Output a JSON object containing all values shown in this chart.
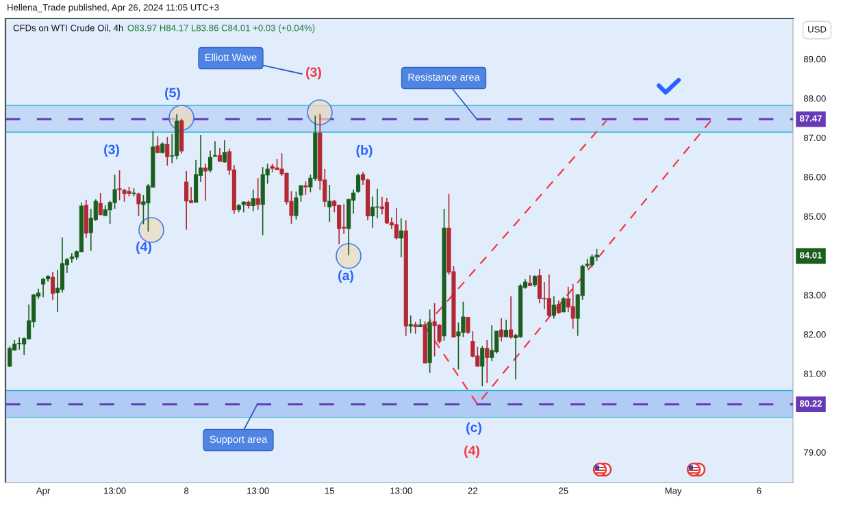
{
  "chart_data": {
    "type": "candlestick",
    "title": "CFDs on WTI Crude Oil, 4h",
    "subtitle": "O83.97 H84.17 L83.86 C84.01 +0.03 (+0.04%)",
    "ylabel": "USD",
    "categories": [
      null,
      null,
      null,
      null,
      null,
      null,
      null,
      "Apr",
      null,
      null,
      null,
      null,
      null,
      null,
      null,
      null,
      null,
      null,
      null,
      null,
      null,
      null,
      "13:00",
      null,
      null,
      null,
      null,
      null,
      null,
      null,
      null,
      null,
      null,
      null,
      null,
      null,
      null,
      "8",
      null,
      null,
      null,
      null,
      null,
      null,
      null,
      null,
      null,
      null,
      null,
      null,
      null,
      null,
      "13:00",
      null,
      null,
      null,
      null,
      null,
      null,
      null,
      null,
      null,
      null,
      null,
      null,
      null,
      null,
      "15",
      null,
      null,
      null,
      null,
      null,
      null,
      null,
      null,
      null,
      null,
      null,
      null,
      null,
      null,
      "13:00",
      null,
      null,
      null,
      null,
      null,
      null,
      null,
      null,
      null,
      null,
      null,
      null,
      null,
      null,
      "22",
      null,
      null,
      null,
      null,
      null,
      null,
      null,
      null,
      null,
      null,
      null,
      null,
      null,
      null,
      null,
      null,
      null,
      null,
      "25",
      null,
      null,
      null,
      null,
      null,
      null,
      null,
      null,
      null,
      null,
      null,
      null,
      null,
      null,
      null,
      null,
      null,
      null,
      null,
      null,
      null,
      null,
      "May",
      null,
      null,
      null,
      null,
      null,
      null,
      null,
      null,
      null,
      null,
      null,
      null,
      null,
      null,
      null,
      null,
      null,
      "6",
      null,
      null,
      null,
      null,
      null,
      null,
      null
    ],
    "ohlc": [
      [
        81.19,
        81.7,
        81.17,
        81.64
      ],
      [
        81.6,
        81.85,
        81.58,
        81.75
      ],
      [
        81.76,
        81.92,
        81.61,
        81.77
      ],
      [
        81.75,
        81.92,
        81.47,
        81.89
      ],
      [
        81.89,
        82.76,
        81.86,
        82.34
      ],
      [
        82.32,
        83.02,
        82.17,
        83.0
      ],
      [
        82.97,
        83.16,
        82.9,
        83.05
      ],
      [
        83.28,
        83.43,
        82.94,
        83.4
      ],
      [
        83.41,
        83.5,
        83.34,
        83.47
      ],
      [
        83.45,
        83.59,
        82.87,
        83.04
      ],
      [
        83.06,
        83.64,
        82.57,
        83.17
      ],
      [
        83.14,
        84.46,
        83.06,
        83.8
      ],
      [
        83.77,
        83.94,
        83.56,
        83.9
      ],
      [
        83.93,
        84.06,
        83.82,
        83.97
      ],
      [
        83.96,
        84.13,
        83.89,
        84.1
      ],
      [
        84.1,
        85.35,
        84.09,
        85.26
      ],
      [
        85.28,
        85.42,
        84.45,
        84.57
      ],
      [
        84.59,
        85.19,
        84.12,
        84.95
      ],
      [
        84.92,
        85.43,
        84.88,
        85.38
      ],
      [
        85.33,
        85.59,
        85.03,
        85.04
      ],
      [
        85.02,
        85.28,
        85.01,
        85.17
      ],
      [
        85.16,
        85.39,
        84.81,
        85.35
      ],
      [
        85.35,
        86.06,
        85.19,
        85.68
      ],
      [
        85.7,
        86.17,
        85.41,
        85.68
      ],
      [
        85.66,
        85.7,
        85.37,
        85.58
      ],
      [
        85.63,
        85.75,
        85.51,
        85.58
      ],
      [
        85.58,
        85.71,
        85.51,
        85.59
      ],
      [
        85.57,
        85.6,
        85.01,
        85.32
      ],
      [
        85.3,
        85.54,
        84.8,
        85.37
      ],
      [
        85.34,
        85.82,
        84.61,
        85.77
      ],
      [
        85.74,
        87.17,
        85.73,
        86.76
      ],
      [
        86.79,
        87.03,
        86.6,
        86.62
      ],
      [
        86.62,
        86.88,
        86.6,
        86.84
      ],
      [
        86.83,
        87.02,
        86.29,
        86.52
      ],
      [
        86.53,
        87.09,
        86.35,
        86.54
      ],
      [
        86.54,
        87.6,
        86.45,
        87.42
      ],
      [
        87.43,
        87.48,
        86.59,
        86.66
      ],
      [
        85.87,
        86.15,
        84.66,
        85.39
      ],
      [
        85.4,
        85.75,
        85.34,
        85.35
      ],
      [
        85.36,
        86.43,
        85.35,
        86.06
      ],
      [
        86.04,
        87.07,
        85.87,
        86.23
      ],
      [
        86.23,
        86.34,
        85.39,
        86.15
      ],
      [
        86.17,
        86.67,
        86.12,
        86.5
      ],
      [
        86.53,
        86.91,
        86.52,
        86.55
      ],
      [
        86.55,
        86.74,
        86.39,
        86.4
      ],
      [
        86.38,
        86.93,
        86.36,
        86.62
      ],
      [
        86.64,
        86.72,
        86.05,
        86.17
      ],
      [
        86.18,
        86.3,
        85.06,
        85.16
      ],
      [
        85.17,
        85.31,
        85.1,
        85.27
      ],
      [
        85.3,
        85.38,
        85.1,
        85.36
      ],
      [
        85.36,
        85.4,
        85.2,
        85.27
      ],
      [
        85.27,
        85.68,
        85.13,
        85.45
      ],
      [
        85.45,
        85.97,
        85.16,
        85.3
      ],
      [
        85.3,
        86.25,
        84.52,
        86.06
      ],
      [
        86.05,
        86.34,
        85.83,
        86.2
      ],
      [
        86.27,
        86.34,
        86.12,
        86.22
      ],
      [
        86.23,
        86.46,
        86.18,
        86.19
      ],
      [
        86.2,
        86.6,
        86.03,
        86.08
      ],
      [
        86.09,
        86.11,
        85.3,
        85.37
      ],
      [
        85.38,
        85.64,
        84.81,
        85.02
      ],
      [
        85.02,
        85.63,
        84.92,
        85.47
      ],
      [
        85.54,
        85.79,
        85.37,
        85.78
      ],
      [
        85.78,
        85.89,
        85.54,
        85.75
      ],
      [
        85.75,
        86.06,
        85.61,
        85.97
      ],
      [
        85.96,
        87.56,
        85.9,
        87.12
      ],
      [
        87.12,
        87.6,
        85.67,
        85.91
      ],
      [
        85.92,
        86.2,
        85.24,
        85.38
      ],
      [
        85.24,
        85.8,
        84.86,
        85.38
      ],
      [
        85.38,
        85.42,
        85.1,
        85.27
      ],
      [
        85.28,
        85.29,
        84.29,
        84.69
      ],
      [
        84.72,
        85.31,
        84.55,
        84.7
      ],
      [
        84.69,
        85.44,
        84.01,
        85.43
      ],
      [
        85.41,
        85.68,
        85.07,
        85.59
      ],
      [
        85.63,
        86.09,
        85.6,
        86.04
      ],
      [
        86.06,
        86.13,
        85.8,
        85.93
      ],
      [
        85.92,
        85.96,
        84.9,
        85.01
      ],
      [
        85.01,
        85.5,
        84.71,
        85.23
      ],
      [
        85.23,
        85.7,
        84.95,
        85.24
      ],
      [
        85.24,
        85.49,
        85.05,
        85.2
      ],
      [
        85.35,
        85.47,
        84.81,
        84.83
      ],
      [
        84.84,
        84.97,
        84.68,
        84.78
      ],
      [
        84.79,
        85.21,
        84.41,
        84.45
      ],
      [
        84.45,
        84.95,
        83.96,
        84.63
      ],
      [
        84.63,
        84.9,
        81.96,
        82.21
      ],
      [
        82.21,
        82.48,
        82.03,
        82.25
      ],
      [
        82.24,
        82.32,
        82.01,
        82.19
      ],
      [
        82.19,
        82.39,
        82.18,
        82.24
      ],
      [
        82.24,
        82.33,
        81.26,
        81.27
      ],
      [
        81.28,
        82.63,
        81.02,
        82.3
      ],
      [
        82.32,
        82.79,
        81.44,
        82.22
      ],
      [
        82.23,
        82.26,
        81.77,
        81.82
      ],
      [
        81.96,
        85.19,
        81.84,
        84.7
      ],
      [
        84.7,
        85.57,
        83.51,
        83.58
      ],
      [
        83.59,
        83.73,
        81.92,
        81.93
      ],
      [
        81.96,
        82.3,
        81.11,
        82.06
      ],
      [
        82.05,
        82.83,
        81.93,
        82.44
      ],
      [
        82.43,
        82.44,
        82.01,
        82.05
      ],
      [
        81.82,
        82.08,
        81.41,
        81.44
      ],
      [
        81.45,
        81.68,
        81.18,
        81.19
      ],
      [
        81.19,
        81.7,
        80.68,
        81.64
      ],
      [
        81.64,
        81.85,
        80.76,
        81.41
      ],
      [
        81.41,
        82.23,
        81.32,
        81.59
      ],
      [
        81.56,
        82.09,
        81.51,
        82.08
      ],
      [
        82.11,
        82.41,
        81.82,
        81.94
      ],
      [
        81.94,
        82.37,
        81.93,
        82.1
      ],
      [
        82.11,
        82.97,
        81.89,
        81.93
      ],
      [
        81.91,
        82.01,
        80.85,
        81.97
      ],
      [
        81.94,
        83.28,
        81.91,
        83.23
      ],
      [
        83.19,
        83.4,
        83.16,
        83.33
      ],
      [
        83.3,
        83.5,
        83.23,
        83.24
      ],
      [
        83.26,
        83.5,
        83.21,
        83.47
      ],
      [
        83.49,
        83.66,
        82.79,
        82.91
      ],
      [
        82.91,
        83.33,
        82.64,
        82.9
      ],
      [
        82.91,
        83.52,
        82.43,
        82.48
      ],
      [
        82.48,
        82.97,
        82.4,
        82.74
      ],
      [
        82.76,
        82.86,
        82.52,
        82.55
      ],
      [
        82.57,
        82.95,
        82.56,
        82.9
      ],
      [
        82.9,
        83.21,
        82.56,
        82.69
      ],
      [
        82.7,
        83.28,
        82.14,
        82.41
      ],
      [
        82.41,
        83.02,
        81.96,
        83.0
      ],
      [
        82.99,
        83.77,
        82.88,
        83.73
      ],
      [
        83.75,
        83.92,
        83.68,
        83.78
      ],
      [
        83.77,
        84.03,
        83.71,
        83.97
      ],
      [
        83.97,
        84.17,
        83.86,
        84.01
      ],
      null,
      null,
      null,
      null,
      null,
      null,
      null,
      null,
      null,
      null,
      null,
      null,
      null,
      null,
      null,
      null,
      null,
      null,
      null,
      null,
      null,
      null,
      null,
      null,
      null,
      null,
      null,
      null,
      null,
      null,
      null,
      null,
      null,
      null,
      null,
      null,
      null,
      null,
      null,
      null,
      null
    ],
    "colors": [
      "#1b5e20",
      "#1b5e20",
      "#1b5e20",
      "#1b5e20",
      "#1b5e20",
      "#1b5e20",
      "#1b5e20",
      "#1b5e20",
      "#1b5e20",
      "#b22833",
      "#1b5e20",
      "#1b5e20",
      "#1b5e20",
      "#1b5e20",
      "#1b5e20",
      "#1b5e20",
      "#b22833",
      "#1b5e20",
      "#1b5e20",
      "#b22833",
      "#1b5e20",
      "#1b5e20",
      "#1b5e20",
      "#b22833",
      "#b22833",
      "#b22833",
      "#1b5e20",
      "#b22833",
      "#1b5e20",
      "#1b5e20",
      "#1b5e20",
      "#b22833",
      "#1b5e20",
      "#b22833",
      "#1b5e20",
      "#1b5e20",
      "#b22833",
      "#b22833",
      "#b22833",
      "#1b5e20",
      "#1b5e20",
      "#b22833",
      "#1b5e20",
      "#1b5e20",
      "#b22833",
      "#1b5e20",
      "#b22833",
      "#b22833",
      "#1b5e20",
      "#1b5e20",
      "#b22833",
      "#1b5e20",
      "#b22833",
      "#1b5e20",
      "#1b5e20",
      "#b22833",
      "#b22833",
      "#b22833",
      "#b22833",
      "#b22833",
      "#1b5e20",
      "#1b5e20",
      "#b22833",
      "#1b5e20",
      "#1b5e20",
      "#b22833",
      "#b22833",
      "#1b5e20",
      "#b22833",
      "#b22833",
      "#b22833",
      "#1b5e20",
      "#1b5e20",
      "#1b5e20",
      "#b22833",
      "#b22833",
      "#1b5e20",
      "#1b5e20",
      "#b22833",
      "#b22833",
      "#b22833",
      "#b22833",
      "#1b5e20",
      "#b22833",
      "#1b5e20",
      "#b22833",
      "#1b5e20",
      "#b22833",
      "#1b5e20",
      "#b22833",
      "#b22833",
      "#1b5e20",
      "#b22833",
      "#b22833",
      "#1b5e20",
      "#1b5e20",
      "#b22833",
      "#b22833",
      "#b22833",
      "#1b5e20",
      "#b22833",
      "#1b5e20",
      "#1b5e20",
      "#b22833",
      "#1b5e20",
      "#b22833",
      "#1b5e20",
      "#1b5e20",
      "#1b5e20",
      "#b22833",
      "#1b5e20",
      "#b22833",
      "#b22833",
      "#b22833",
      "#1b5e20",
      "#b22833",
      "#1b5e20",
      "#b22833",
      "#b22833",
      "#1b5e20",
      "#1b5e20",
      "#1b5e20",
      "#1b5e20",
      "#1b5e20",
      null,
      null,
      null,
      null,
      null,
      null,
      null,
      null,
      null,
      null,
      null,
      null,
      null,
      null,
      null,
      null,
      null,
      null,
      null,
      null,
      null,
      null,
      null,
      null,
      null,
      null,
      null,
      null,
      null,
      null,
      null,
      null,
      null,
      null,
      null,
      null,
      null,
      null,
      null,
      null,
      null
    ],
    "series": [
      {
        "type": "line",
        "color": "#f23645",
        "line_style": "dashed",
        "values": [
          null,
          null,
          null,
          null,
          null,
          null,
          null,
          null,
          null,
          null,
          null,
          null,
          null,
          null,
          null,
          null,
          null,
          null,
          null,
          null,
          null,
          null,
          null,
          null,
          null,
          null,
          null,
          null,
          null,
          null,
          null,
          null,
          null,
          null,
          null,
          null,
          null,
          null,
          null,
          null,
          null,
          null,
          null,
          null,
          null,
          null,
          null,
          null,
          null,
          null,
          null,
          null,
          null,
          null,
          null,
          null,
          null,
          null,
          null,
          null,
          null,
          null,
          null,
          null,
          null,
          null,
          null,
          null,
          null,
          null,
          null,
          null,
          null,
          null,
          null,
          null,
          null,
          null,
          null,
          null,
          null,
          null,
          null,
          null,
          null,
          null,
          null,
          82.2,
          null,
          null,
          null,
          null,
          null,
          null,
          null,
          null,
          null,
          null,
          null,
          null,
          null,
          null,
          null,
          null,
          null,
          null,
          null,
          null,
          null,
          null,
          null,
          null,
          null,
          null,
          null,
          null,
          null,
          null,
          null,
          null,
          null,
          null,
          null,
          null,
          null,
          87.43,
          null,
          null,
          null,
          null,
          null,
          null,
          null,
          null,
          null,
          null,
          null,
          null,
          null,
          null,
          null,
          null,
          null,
          null,
          null,
          null,
          null,
          null,
          null,
          null,
          null,
          null,
          null,
          null,
          null,
          null,
          null,
          null,
          null,
          null,
          null,
          null,
          null,
          null,
          null
        ]
      },
      {
        "type": "line",
        "color": "#f23645",
        "line_style": "dashed",
        "values": [
          null,
          null,
          null,
          null,
          null,
          null,
          null,
          null,
          null,
          null,
          null,
          null,
          null,
          null,
          null,
          null,
          null,
          null,
          null,
          null,
          null,
          null,
          null,
          null,
          null,
          null,
          null,
          null,
          null,
          null,
          null,
          null,
          null,
          null,
          null,
          null,
          null,
          null,
          null,
          null,
          null,
          null,
          null,
          null,
          null,
          null,
          null,
          null,
          null,
          null,
          null,
          null,
          null,
          null,
          null,
          null,
          null,
          null,
          null,
          null,
          null,
          null,
          null,
          null,
          null,
          null,
          null,
          null,
          null,
          null,
          null,
          null,
          null,
          null,
          null,
          null,
          null,
          null,
          null,
          null,
          null,
          null,
          null,
          null,
          null,
          null,
          null,
          82.2,
          null,
          null,
          null,
          null,
          null,
          null,
          null,
          null,
          null,
          null,
          80.22,
          null,
          null,
          null,
          null,
          null,
          null,
          null,
          null,
          null,
          null,
          null,
          null,
          null,
          null,
          null,
          null,
          null,
          null,
          null,
          null,
          null,
          null,
          null,
          null,
          null,
          null,
          null,
          null,
          null,
          null,
          null,
          null,
          null,
          null,
          null,
          null,
          null,
          null,
          null,
          null,
          null,
          null,
          null,
          null,
          null,
          null,
          null,
          null,
          87.45,
          null,
          null,
          null,
          null,
          null,
          null,
          null,
          null,
          null,
          null,
          null,
          null,
          null,
          null,
          null,
          null,
          null
        ]
      }
    ],
    "ylim": [
      78.23,
      90.03
    ],
    "yticks": [
      {
        "value": 79,
        "label": "79.00"
      },
      {
        "value": 81,
        "label": "81.00"
      },
      {
        "value": 82,
        "label": "82.00"
      },
      {
        "value": 83,
        "label": "83.00"
      },
      {
        "value": 85,
        "label": "85.00"
      },
      {
        "value": 86,
        "label": "86.00"
      },
      {
        "value": 87,
        "label": "87.00"
      },
      {
        "value": 88,
        "label": "88.00"
      },
      {
        "value": 89,
        "label": "89.00"
      }
    ],
    "ref_lines": [
      {
        "axis": "y",
        "value": 87.47,
        "label": "87.47",
        "color": "#673ab7",
        "line_style": "dashed"
      },
      {
        "axis": "y",
        "value": 80.22,
        "label": "80.22",
        "color": "#673ab7",
        "line_style": "dashed"
      }
    ],
    "bands": [
      {
        "axis": "y",
        "from": 87.14,
        "to": 87.82,
        "label": "Resistance area",
        "color": "#c4d8f7"
      },
      {
        "axis": "y",
        "from": 79.89,
        "to": 80.57,
        "label": "Support area",
        "color": "#b0ccf4"
      }
    ],
    "annotations": [
      "Hellena_Trade published, Apr 26, 2024 11:05 UTC+3",
      "Elliott Wave",
      "(3)",
      "(4)",
      "(5)",
      "(3)",
      "(4)",
      "(a)",
      "(b)",
      "(c)",
      "84.01"
    ]
  }
}
